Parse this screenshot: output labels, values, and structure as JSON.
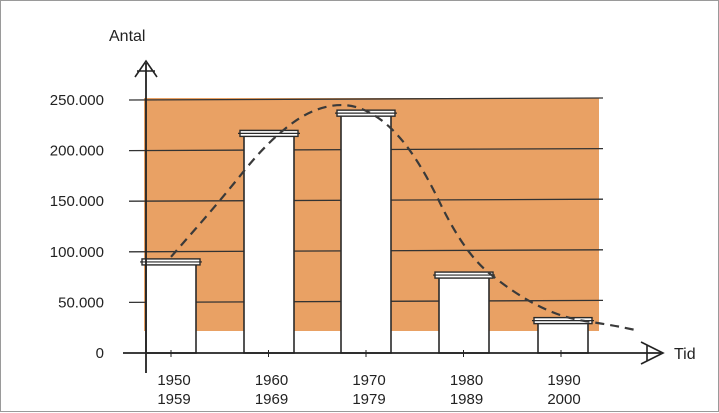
{
  "chart_data": {
    "type": "bar",
    "ylabel": "Antal",
    "xlabel": "Tid",
    "categories": [
      [
        "1950",
        "1959"
      ],
      [
        "1960",
        "1969"
      ],
      [
        "1970",
        "1979"
      ],
      [
        "1980",
        "1989"
      ],
      [
        "1990",
        "2000"
      ]
    ],
    "values": [
      90000,
      217000,
      237000,
      77000,
      32000
    ],
    "trend": {
      "x": [
        0,
        0.5,
        1,
        1.5,
        2,
        2.5,
        3,
        3.5,
        4,
        4.5,
        4.8
      ],
      "y": [
        95000,
        150000,
        210000,
        245000,
        245000,
        200000,
        100000,
        60000,
        35000,
        28000,
        22000
      ]
    },
    "yticks": [
      "0",
      "50.000",
      "100.000",
      "150.000",
      "200.000",
      "250.000"
    ],
    "ylim": [
      0,
      250000
    ],
    "grid": true,
    "colors": {
      "shading": "#e9a164",
      "bar": "#ffffff",
      "bar_outline": "#2a2a2a",
      "trend": "#3a3a3a",
      "text": "#222222"
    }
  }
}
